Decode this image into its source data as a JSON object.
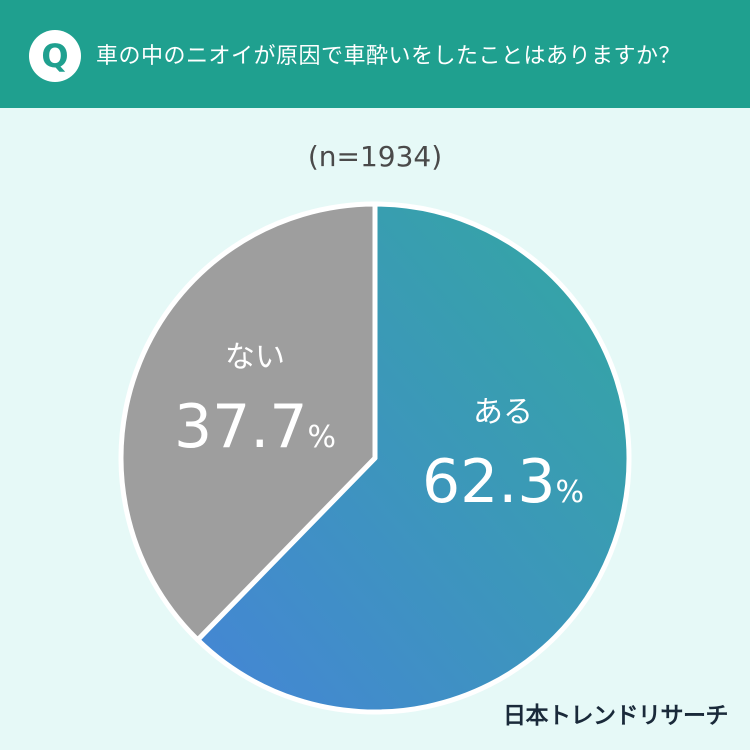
{
  "header": {
    "badge": "Q",
    "question": "車の中のニオイが原因で車酔いをしたことはありますか？"
  },
  "sample": "(n=1934)",
  "chart_data": {
    "type": "pie",
    "title": "車の中のニオイが原因で車酔いをしたことはありますか？",
    "n": 1934,
    "slices": [
      {
        "label": "ある",
        "value": 62.3,
        "display": "62.3",
        "unit": "%",
        "color_start": "#33a8a0",
        "color_end": "#4585d6"
      },
      {
        "label": "ない",
        "value": 37.7,
        "display": "37.7",
        "unit": "%",
        "color_start": "#9e9e9e",
        "color_end": "#9e9e9e"
      }
    ]
  },
  "brand": "日本トレンドリサーチ",
  "colors": {
    "header_bg": "#1fa08f",
    "page_bg": "#e6f9f7"
  }
}
